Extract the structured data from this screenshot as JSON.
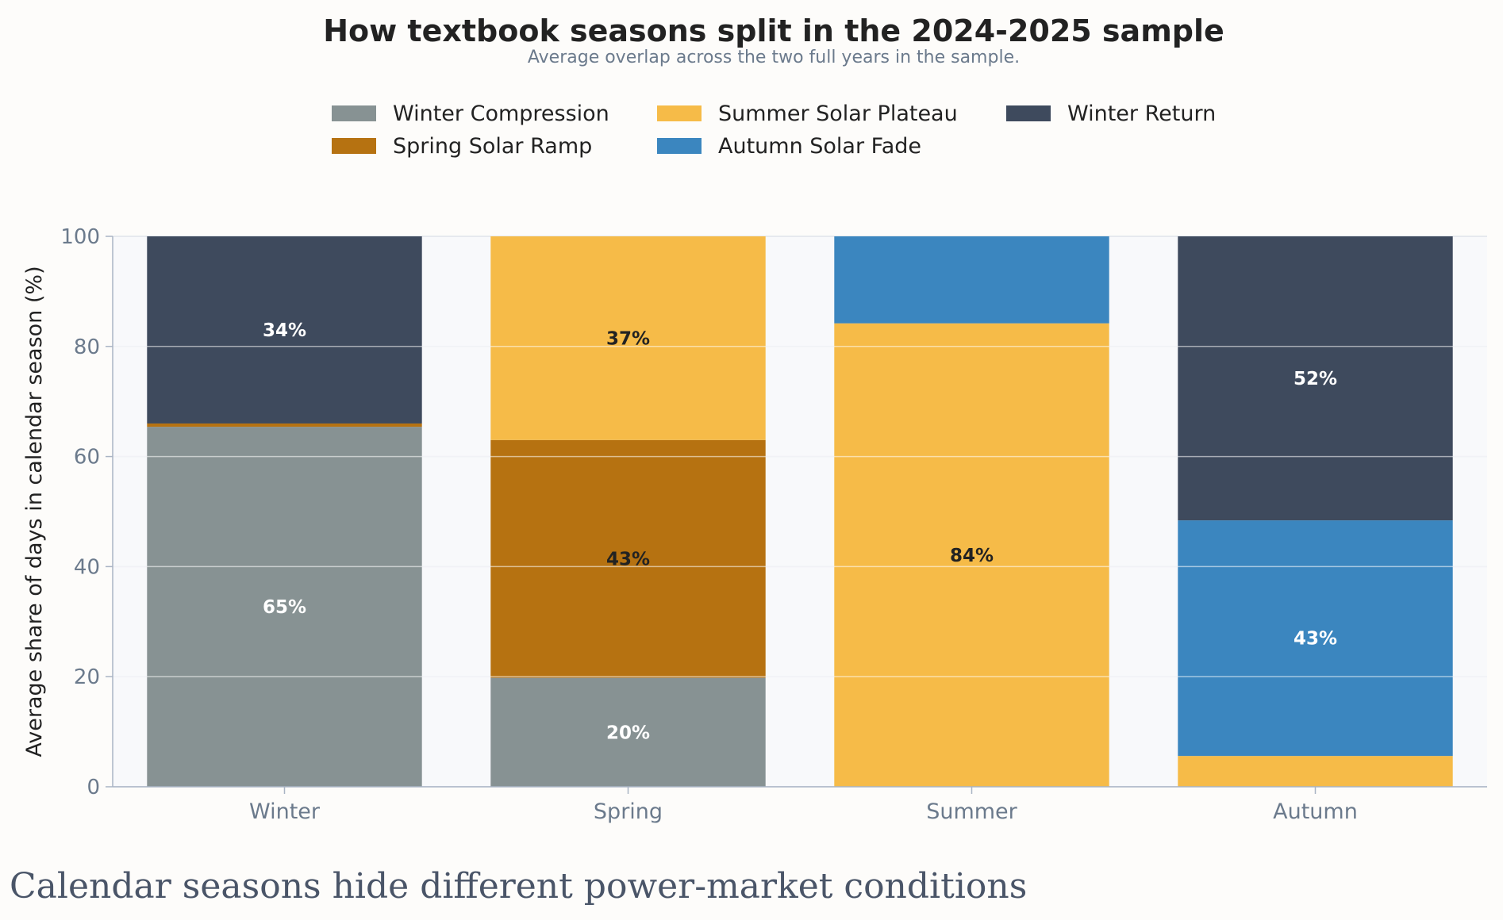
{
  "chart_data": {
    "type": "bar",
    "stacked": true,
    "title": "How textbook seasons split in the 2024-2025 sample",
    "subtitle": "Average overlap across the two full years in the sample.",
    "xlabel": "",
    "ylabel": "Average share of days in calendar season (%)",
    "ylim": [
      0,
      100
    ],
    "yticks": [
      0,
      20,
      40,
      60,
      80,
      100
    ],
    "grid": true,
    "legend_position": "top-center",
    "categories": [
      "Winter",
      "Spring",
      "Summer",
      "Autumn"
    ],
    "series": [
      {
        "name": "Winter Compression",
        "color": "#879293",
        "values": [
          65.4,
          19.8,
          0,
          0
        ],
        "labels": [
          "65%",
          "20%",
          "",
          ""
        ],
        "label_color": "#ffffff"
      },
      {
        "name": "Spring Solar Ramp",
        "color": "#b67211",
        "values": [
          0.6,
          43.2,
          0,
          0
        ],
        "labels": [
          "",
          "43%",
          "",
          ""
        ],
        "label_color": "#222222"
      },
      {
        "name": "Summer Solar Plateau",
        "color": "#f6bb48",
        "values": [
          0,
          37.0,
          84.2,
          5.6
        ],
        "labels": [
          "",
          "37%",
          "84%",
          ""
        ],
        "label_color": "#222222"
      },
      {
        "name": "Autumn Solar Fade",
        "color": "#3b86bf",
        "values": [
          0,
          0,
          15.8,
          42.8
        ],
        "labels": [
          "",
          "",
          "",
          "43%"
        ],
        "label_color": "#ffffff"
      },
      {
        "name": "Winter Return",
        "color": "#3e4a5d",
        "values": [
          34.0,
          0,
          0,
          51.6
        ],
        "labels": [
          "34%",
          "",
          "",
          "52%"
        ],
        "label_color": "#ffffff"
      }
    ],
    "legend_order": [
      "Winter Compression",
      "Summer Solar Plateau",
      "Winter Return",
      "Spring Solar Ramp",
      "Autumn Solar Fade"
    ]
  },
  "caption": "Calendar seasons hide different power-market conditions"
}
